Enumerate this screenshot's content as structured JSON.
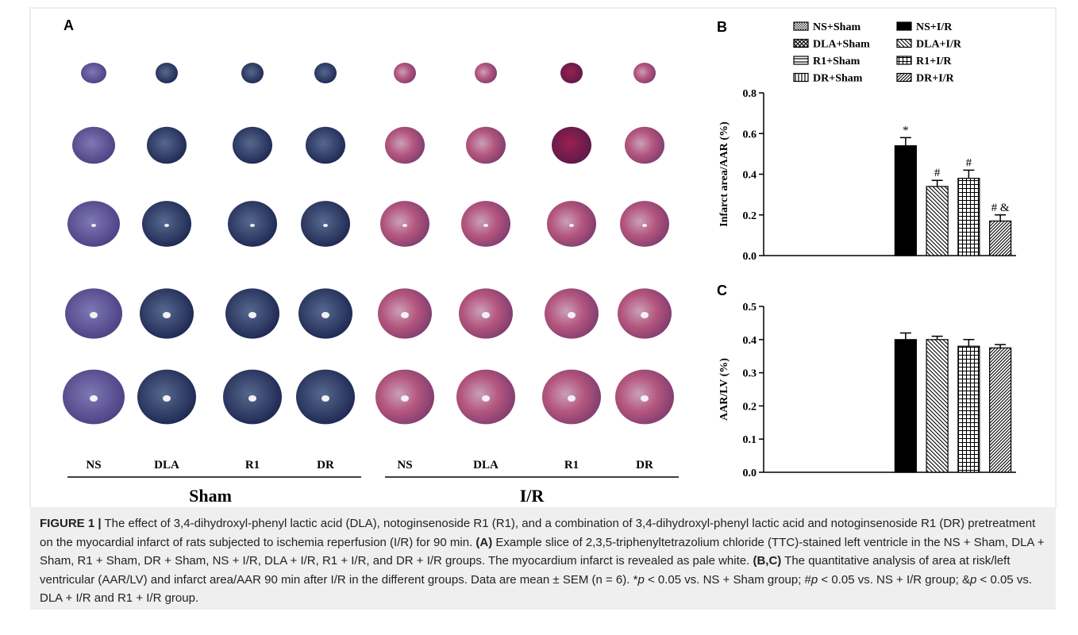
{
  "panel_a": {
    "label": "A",
    "columns": [
      "NS",
      "DLA",
      "R1",
      "DR",
      "NS",
      "DLA",
      "R1",
      "DR"
    ],
    "groups": [
      "Sham",
      "I/R"
    ]
  },
  "chart_data": [
    {
      "type": "bar",
      "panel": "B",
      "ylabel": "Infarct area/AAR (%)",
      "categories": [
        "NS+Sham",
        "DLA+Sham",
        "R1+Sham",
        "DR+Sham",
        "NS+I/R",
        "DLA+I/R",
        "R1+I/R",
        "DR+I/R"
      ],
      "values": [
        0,
        0,
        0,
        0,
        0.54,
        0.34,
        0.38,
        0.17
      ],
      "errors": [
        0,
        0,
        0,
        0,
        0.04,
        0.03,
        0.04,
        0.03
      ],
      "annotations": [
        null,
        null,
        null,
        null,
        "*",
        "#",
        "#",
        "# &"
      ],
      "ylim": [
        0,
        0.8
      ],
      "yticks": [
        {
          "value": 0,
          "label": "0.0"
        },
        0.2,
        0.4,
        0.6,
        0.8
      ]
    },
    {
      "type": "bar",
      "panel": "C",
      "ylabel": "AAR/LV (%)",
      "values": [
        0,
        0,
        0,
        0,
        0.4,
        0.4,
        0.38,
        0.375
      ],
      "errors": [
        0,
        0,
        0,
        0,
        0.02,
        0.01,
        0.02,
        0.01
      ],
      "ylim": [
        0,
        0.5
      ],
      "yticks": [
        {
          "value": 0,
          "label": "0.0"
        },
        0.1,
        0.2,
        0.3,
        0.4,
        0.5
      ]
    }
  ],
  "caption": {
    "parts": [
      "FIGURE 1 |",
      " The effect of 3,4-dihydroxyl-phenyl lactic acid (DLA), notoginsenoside R1 (R1), and a combination of 3,4-dihydroxyl-phenyl lactic acid and notoginsenoside R1 (DR) pretreatment on the myocardial infarct of rats subjected to ischemia reperfusion (I/R) for 90 min. ",
      "(A)",
      " Example slice of 2,3,5-triphenyltetrazolium chloride (TTC)-stained left ventricle in the NS + Sham, DLA + Sham, R1 + Sham, DR + Sham, NS + I/R, DLA + I/R, R1 + I/R, and DR + I/R groups. The myocardium infarct is revealed as pale white. ",
      "(B,C)",
      " The quantitative analysis of area at risk/left ventricular (AAR/LV) and infarct area/AAR 90 min after I/R in the different groups. Data are mean ± SEM (n = 6). *",
      "p",
      " < 0.05 vs. NS + Sham group; #",
      "p",
      " < 0.05 vs. NS + I/R group; &",
      "p",
      " < 0.05 vs. DLA + I/R and R1 + I/R group."
    ]
  }
}
